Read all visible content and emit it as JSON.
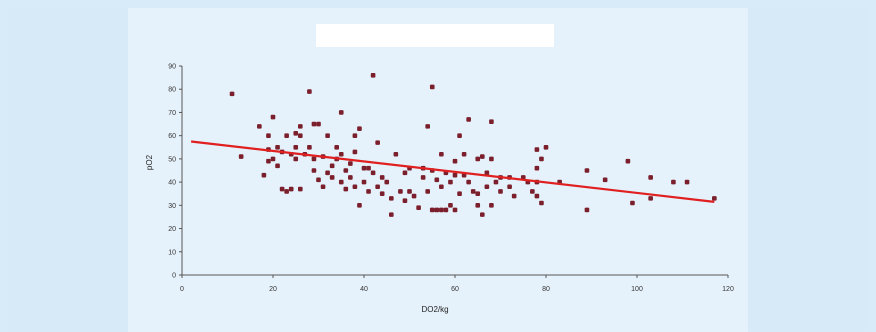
{
  "chart_data": {
    "type": "scatter",
    "title": "",
    "xlabel": "DO2/kg",
    "ylabel": "pO2",
    "xlim": [
      0,
      120
    ],
    "ylim": [
      0,
      90
    ],
    "xticks": [
      "0",
      "20",
      "40",
      "60",
      "80",
      "100",
      "120"
    ],
    "yticks": [
      "0",
      "10",
      "20",
      "30",
      "40",
      "50",
      "60",
      "70",
      "80",
      "90"
    ],
    "grid": false,
    "legend": "none",
    "colors": {
      "points": "#7a1f2b",
      "trendline": "#e02020",
      "axis": "#555555"
    },
    "trendline": {
      "x": [
        2,
        117
      ],
      "y": [
        57.5,
        31.5
      ]
    },
    "series": [
      {
        "values": [
          [
            11,
            78
          ],
          [
            13,
            51
          ],
          [
            17,
            64
          ],
          [
            18,
            43
          ],
          [
            19,
            60
          ],
          [
            19,
            54
          ],
          [
            19,
            49
          ],
          [
            20,
            68
          ],
          [
            20,
            50
          ],
          [
            21,
            55
          ],
          [
            21,
            47
          ],
          [
            22,
            37
          ],
          [
            22,
            53
          ],
          [
            23,
            60
          ],
          [
            23,
            36
          ],
          [
            24,
            52
          ],
          [
            24,
            37
          ],
          [
            25,
            61
          ],
          [
            25,
            55
          ],
          [
            25,
            50
          ],
          [
            26,
            64
          ],
          [
            26,
            60
          ],
          [
            26,
            37
          ],
          [
            27,
            52
          ],
          [
            28,
            79
          ],
          [
            28,
            55
          ],
          [
            29,
            65
          ],
          [
            29,
            50
          ],
          [
            29,
            45
          ],
          [
            30,
            65
          ],
          [
            30,
            41
          ],
          [
            31,
            51
          ],
          [
            31,
            38
          ],
          [
            32,
            60
          ],
          [
            32,
            44
          ],
          [
            33,
            42
          ],
          [
            33,
            47
          ],
          [
            34,
            55
          ],
          [
            34,
            50
          ],
          [
            35,
            70
          ],
          [
            35,
            52
          ],
          [
            35,
            40
          ],
          [
            36,
            45
          ],
          [
            36,
            37
          ],
          [
            37,
            48
          ],
          [
            37,
            42
          ],
          [
            38,
            38
          ],
          [
            38,
            53
          ],
          [
            38,
            60
          ],
          [
            39,
            63
          ],
          [
            39,
            30
          ],
          [
            40,
            46
          ],
          [
            40,
            40
          ],
          [
            41,
            46
          ],
          [
            41,
            36
          ],
          [
            42,
            86
          ],
          [
            42,
            44
          ],
          [
            43,
            57
          ],
          [
            43,
            38
          ],
          [
            44,
            35
          ],
          [
            44,
            42
          ],
          [
            45,
            40
          ],
          [
            46,
            26
          ],
          [
            46,
            33
          ],
          [
            47,
            52
          ],
          [
            48,
            36
          ],
          [
            49,
            32
          ],
          [
            49,
            44
          ],
          [
            50,
            46
          ],
          [
            50,
            36
          ],
          [
            51,
            34
          ],
          [
            52,
            29
          ],
          [
            53,
            46
          ],
          [
            53,
            42
          ],
          [
            54,
            64
          ],
          [
            54,
            36
          ],
          [
            55,
            81
          ],
          [
            55,
            28
          ],
          [
            55,
            45
          ],
          [
            56,
            41
          ],
          [
            56,
            28
          ],
          [
            57,
            52
          ],
          [
            57,
            38
          ],
          [
            57,
            28
          ],
          [
            58,
            44
          ],
          [
            58,
            28
          ],
          [
            59,
            40
          ],
          [
            59,
            30
          ],
          [
            60,
            49
          ],
          [
            60,
            43
          ],
          [
            60,
            28
          ],
          [
            61,
            60
          ],
          [
            61,
            35
          ],
          [
            62,
            52
          ],
          [
            62,
            43
          ],
          [
            63,
            67
          ],
          [
            63,
            40
          ],
          [
            64,
            36
          ],
          [
            65,
            50
          ],
          [
            65,
            30
          ],
          [
            65,
            35
          ],
          [
            66,
            51
          ],
          [
            66,
            26
          ],
          [
            67,
            44
          ],
          [
            67,
            38
          ],
          [
            68,
            66
          ],
          [
            68,
            50
          ],
          [
            68,
            30
          ],
          [
            69,
            40
          ],
          [
            70,
            42
          ],
          [
            70,
            36
          ],
          [
            72,
            42
          ],
          [
            72,
            38
          ],
          [
            73,
            34
          ],
          [
            75,
            42
          ],
          [
            76,
            40
          ],
          [
            77,
            36
          ],
          [
            78,
            54
          ],
          [
            78,
            46
          ],
          [
            78,
            40
          ],
          [
            78,
            34
          ],
          [
            79,
            31
          ],
          [
            79,
            50
          ],
          [
            80,
            55
          ],
          [
            83,
            40
          ],
          [
            89,
            45
          ],
          [
            89,
            28
          ],
          [
            93,
            41
          ],
          [
            98,
            49
          ],
          [
            99,
            31
          ],
          [
            103,
            42
          ],
          [
            103,
            33
          ],
          [
            108,
            40
          ],
          [
            111,
            40
          ],
          [
            117,
            33
          ]
        ]
      }
    ]
  }
}
